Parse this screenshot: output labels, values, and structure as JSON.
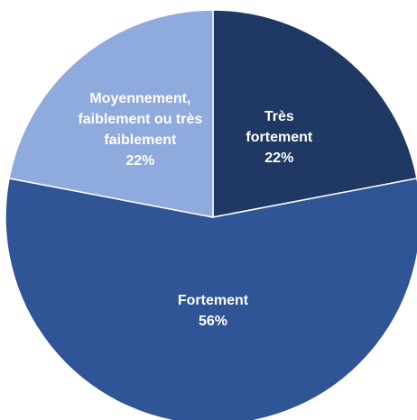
{
  "chart_data": {
    "type": "pie",
    "categories": [
      "Très fortement",
      "Fortement",
      "Moyennement, faiblement ou très faiblement"
    ],
    "values": [
      22,
      56,
      22
    ],
    "value_labels": [
      "22%",
      "56%",
      "22%"
    ],
    "colors": [
      "#203864",
      "#2f5597",
      "#8faadc"
    ]
  }
}
